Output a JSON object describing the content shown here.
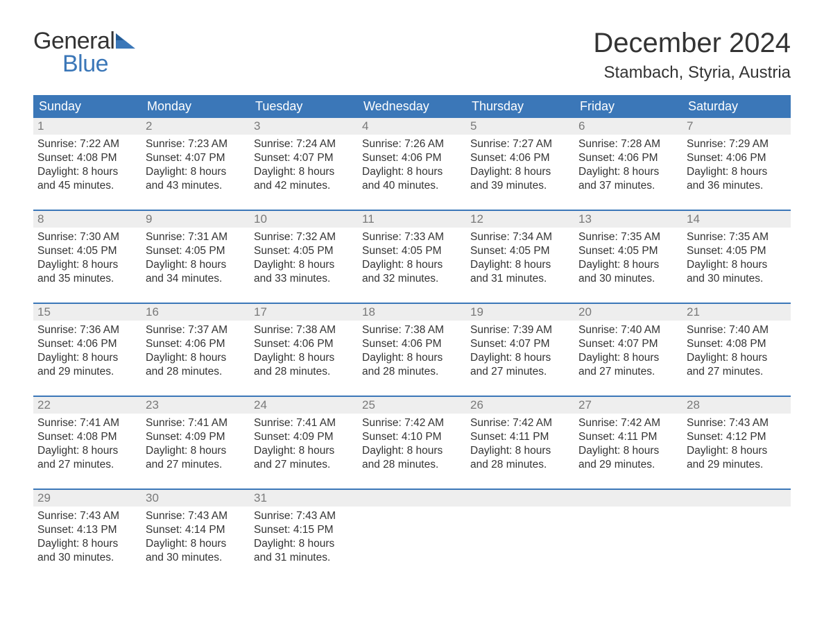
{
  "brand": {
    "general": "General",
    "blue": "Blue",
    "color_primary": "#3b77b8",
    "color_text": "#333333",
    "color_daynum_bg": "#eeeeee",
    "color_daynum_fg": "#797979"
  },
  "header": {
    "month_title": "December 2024",
    "location": "Stambach, Styria, Austria"
  },
  "calendar": {
    "day_names": [
      "Sunday",
      "Monday",
      "Tuesday",
      "Wednesday",
      "Thursday",
      "Friday",
      "Saturday"
    ],
    "weeks": [
      [
        {
          "n": "1",
          "sunrise": "7:22 AM",
          "sunset": "4:08 PM",
          "daylight": "8 hours and 45 minutes."
        },
        {
          "n": "2",
          "sunrise": "7:23 AM",
          "sunset": "4:07 PM",
          "daylight": "8 hours and 43 minutes."
        },
        {
          "n": "3",
          "sunrise": "7:24 AM",
          "sunset": "4:07 PM",
          "daylight": "8 hours and 42 minutes."
        },
        {
          "n": "4",
          "sunrise": "7:26 AM",
          "sunset": "4:06 PM",
          "daylight": "8 hours and 40 minutes."
        },
        {
          "n": "5",
          "sunrise": "7:27 AM",
          "sunset": "4:06 PM",
          "daylight": "8 hours and 39 minutes."
        },
        {
          "n": "6",
          "sunrise": "7:28 AM",
          "sunset": "4:06 PM",
          "daylight": "8 hours and 37 minutes."
        },
        {
          "n": "7",
          "sunrise": "7:29 AM",
          "sunset": "4:06 PM",
          "daylight": "8 hours and 36 minutes."
        }
      ],
      [
        {
          "n": "8",
          "sunrise": "7:30 AM",
          "sunset": "4:05 PM",
          "daylight": "8 hours and 35 minutes."
        },
        {
          "n": "9",
          "sunrise": "7:31 AM",
          "sunset": "4:05 PM",
          "daylight": "8 hours and 34 minutes."
        },
        {
          "n": "10",
          "sunrise": "7:32 AM",
          "sunset": "4:05 PM",
          "daylight": "8 hours and 33 minutes."
        },
        {
          "n": "11",
          "sunrise": "7:33 AM",
          "sunset": "4:05 PM",
          "daylight": "8 hours and 32 minutes."
        },
        {
          "n": "12",
          "sunrise": "7:34 AM",
          "sunset": "4:05 PM",
          "daylight": "8 hours and 31 minutes."
        },
        {
          "n": "13",
          "sunrise": "7:35 AM",
          "sunset": "4:05 PM",
          "daylight": "8 hours and 30 minutes."
        },
        {
          "n": "14",
          "sunrise": "7:35 AM",
          "sunset": "4:05 PM",
          "daylight": "8 hours and 30 minutes."
        }
      ],
      [
        {
          "n": "15",
          "sunrise": "7:36 AM",
          "sunset": "4:06 PM",
          "daylight": "8 hours and 29 minutes."
        },
        {
          "n": "16",
          "sunrise": "7:37 AM",
          "sunset": "4:06 PM",
          "daylight": "8 hours and 28 minutes."
        },
        {
          "n": "17",
          "sunrise": "7:38 AM",
          "sunset": "4:06 PM",
          "daylight": "8 hours and 28 minutes."
        },
        {
          "n": "18",
          "sunrise": "7:38 AM",
          "sunset": "4:06 PM",
          "daylight": "8 hours and 28 minutes."
        },
        {
          "n": "19",
          "sunrise": "7:39 AM",
          "sunset": "4:07 PM",
          "daylight": "8 hours and 27 minutes."
        },
        {
          "n": "20",
          "sunrise": "7:40 AM",
          "sunset": "4:07 PM",
          "daylight": "8 hours and 27 minutes."
        },
        {
          "n": "21",
          "sunrise": "7:40 AM",
          "sunset": "4:08 PM",
          "daylight": "8 hours and 27 minutes."
        }
      ],
      [
        {
          "n": "22",
          "sunrise": "7:41 AM",
          "sunset": "4:08 PM",
          "daylight": "8 hours and 27 minutes."
        },
        {
          "n": "23",
          "sunrise": "7:41 AM",
          "sunset": "4:09 PM",
          "daylight": "8 hours and 27 minutes."
        },
        {
          "n": "24",
          "sunrise": "7:41 AM",
          "sunset": "4:09 PM",
          "daylight": "8 hours and 27 minutes."
        },
        {
          "n": "25",
          "sunrise": "7:42 AM",
          "sunset": "4:10 PM",
          "daylight": "8 hours and 28 minutes."
        },
        {
          "n": "26",
          "sunrise": "7:42 AM",
          "sunset": "4:11 PM",
          "daylight": "8 hours and 28 minutes."
        },
        {
          "n": "27",
          "sunrise": "7:42 AM",
          "sunset": "4:11 PM",
          "daylight": "8 hours and 29 minutes."
        },
        {
          "n": "28",
          "sunrise": "7:43 AM",
          "sunset": "4:12 PM",
          "daylight": "8 hours and 29 minutes."
        }
      ],
      [
        {
          "n": "29",
          "sunrise": "7:43 AM",
          "sunset": "4:13 PM",
          "daylight": "8 hours and 30 minutes."
        },
        {
          "n": "30",
          "sunrise": "7:43 AM",
          "sunset": "4:14 PM",
          "daylight": "8 hours and 30 minutes."
        },
        {
          "n": "31",
          "sunrise": "7:43 AM",
          "sunset": "4:15 PM",
          "daylight": "8 hours and 31 minutes."
        },
        {
          "empty": true
        },
        {
          "empty": true
        },
        {
          "empty": true
        },
        {
          "empty": true
        }
      ]
    ],
    "labels": {
      "sunrise_prefix": "Sunrise: ",
      "sunset_prefix": "Sunset: ",
      "daylight_prefix": "Daylight: "
    }
  }
}
